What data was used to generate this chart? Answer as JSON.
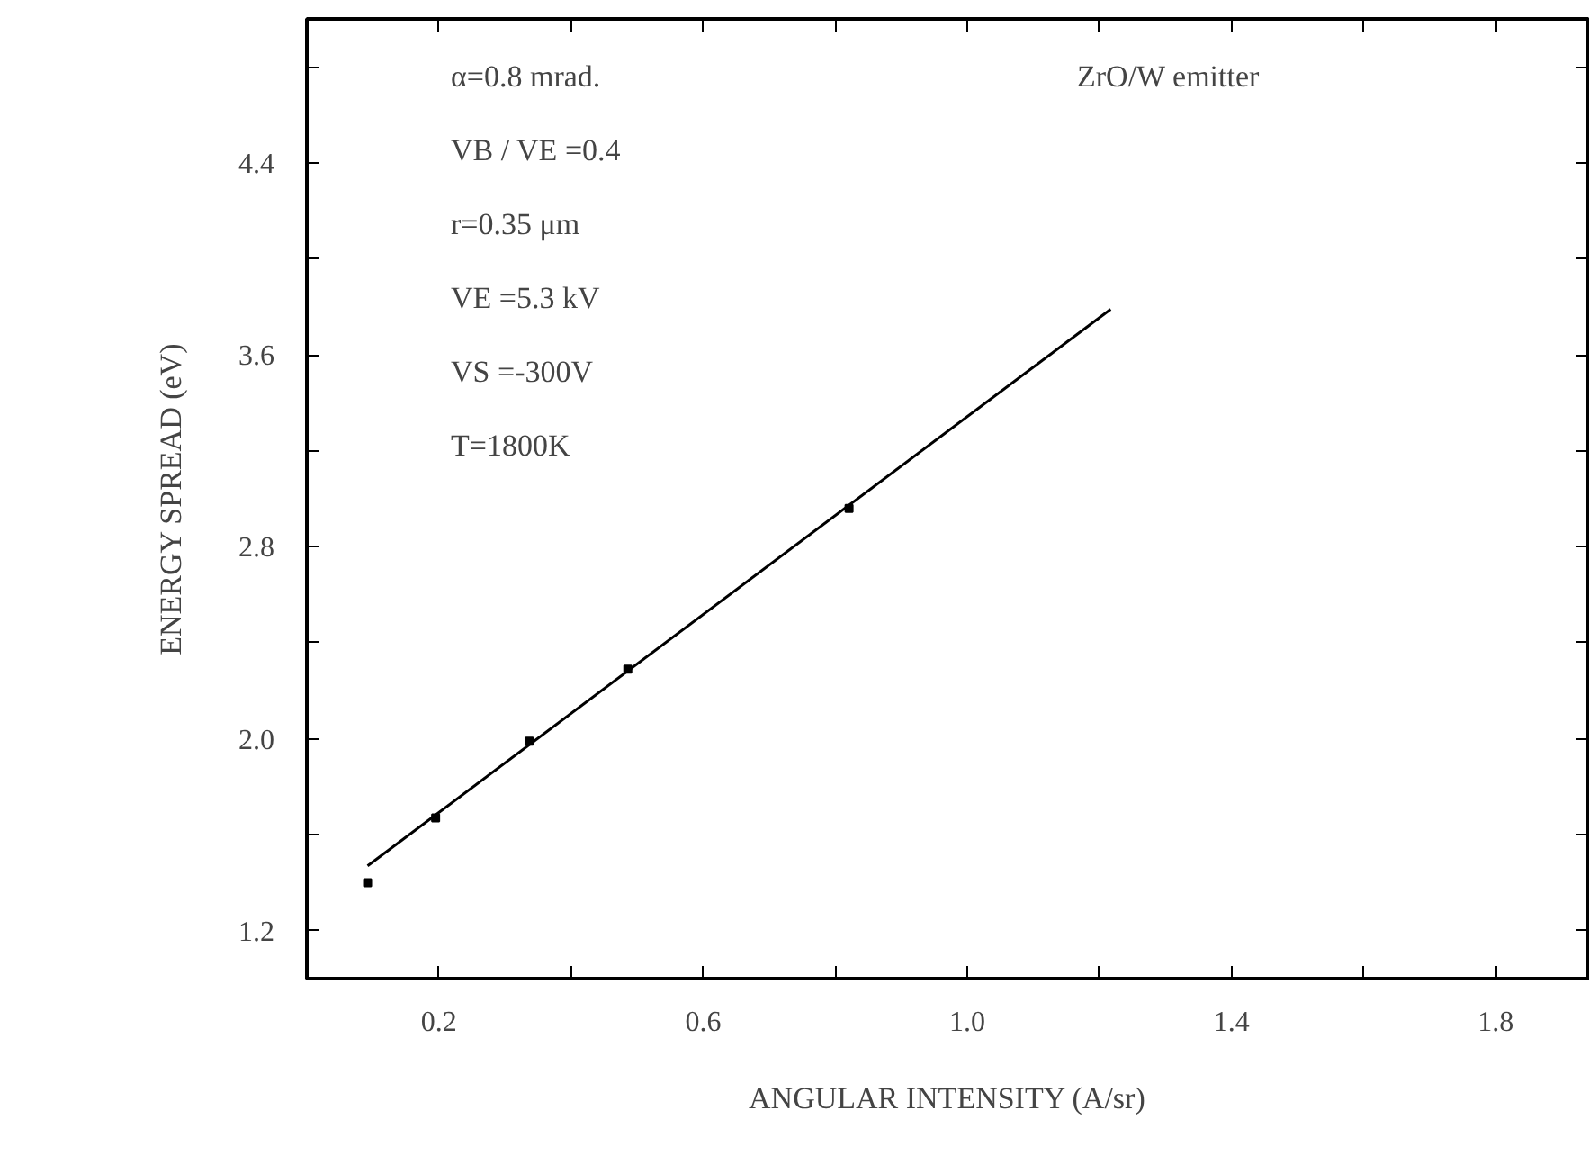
{
  "chart_data": {
    "type": "scatter",
    "xlabel": "ANGULAR INTENSITY (A/sr)",
    "ylabel": "ENERGY SPREAD (eV)",
    "xlim": [
      0,
      1.94
    ],
    "ylim": [
      1.0,
      5.0
    ],
    "xticks": [
      0.2,
      {
        "value": 0.4,
        "label": null
      },
      0.6,
      {
        "value": 0.8,
        "label": null
      },
      {
        "value": 1.0,
        "label": "1.0"
      },
      {
        "value": 1.2,
        "label": null
      },
      1.4,
      {
        "value": 1.6,
        "label": null
      },
      1.8
    ],
    "yticks": [
      1.2,
      {
        "value": 1.6,
        "label": null
      },
      {
        "value": 2.0,
        "label": "2.0"
      },
      {
        "value": 2.4,
        "label": null
      },
      2.8,
      {
        "value": 3.2,
        "label": null
      },
      3.6,
      {
        "value": 4.0,
        "label": null
      },
      4.4,
      {
        "value": 4.8,
        "label": null
      }
    ],
    "series": [
      {
        "color": "#000000",
        "marker": "square",
        "x": [
          0.092,
          0.195,
          0.337,
          0.486,
          0.821
        ],
        "values": [
          1.4,
          1.67,
          1.99,
          2.29,
          2.96
        ]
      },
      {
        "type": "line",
        "color": "#000000",
        "line_style": "solid",
        "x": [
          0.092,
          1.217
        ],
        "values": [
          1.47,
          3.79
        ]
      }
    ],
    "annotations": [
      "α=0.8 mrad.",
      "VB / VE =0.4",
      "r=0.35 μm",
      "VE =5.3 kV",
      "VS =-300V",
      "T=1800K",
      "ZrO/W emitter"
    ],
    "grid": false
  }
}
